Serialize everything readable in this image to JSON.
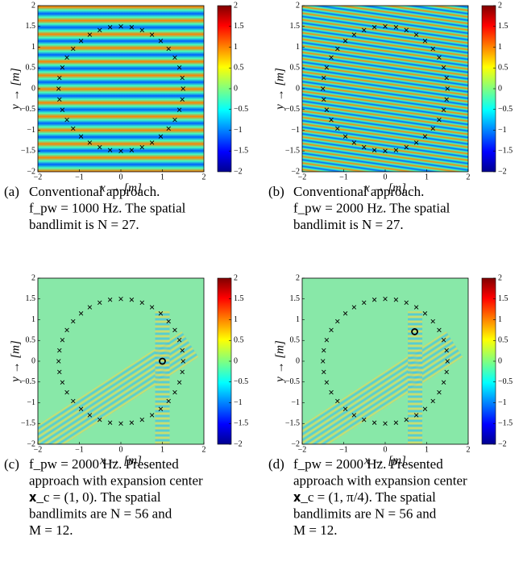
{
  "chart_data": [
    {
      "type": "heatmap",
      "label": "(a)",
      "caption": [
        "Conventional approach.",
        "f_pw = 1000 Hz. The spatial",
        "bandlimit is N = 27."
      ],
      "xlabel": "x → [m]",
      "ylabel": "y → [m]",
      "xlim": [
        -2,
        2
      ],
      "ylim": [
        -2,
        2
      ],
      "xticks": [
        {
          "value": -2,
          "label": "−2"
        },
        {
          "value": -1,
          "label": "−1"
        },
        0,
        1,
        2
      ],
      "yticks": [
        {
          "value": -2,
          "label": "−2"
        },
        {
          "value": -1.5,
          "label": "−1.5"
        },
        {
          "value": -1,
          "label": "−1"
        },
        {
          "value": -0.5,
          "label": "−0.5"
        },
        0,
        0.5,
        1,
        1.5,
        2
      ],
      "colorbar": {
        "lim": [
          -2,
          2
        ],
        "ticks": [
          {
            "value": -2,
            "label": "−2"
          },
          {
            "value": -1.5,
            "label": "−1.5"
          },
          {
            "value": -1,
            "label": "−1"
          },
          {
            "value": -0.5,
            "label": "−0.5"
          },
          0,
          0.5,
          1,
          1.5,
          2
        ]
      }
    },
    {
      "type": "heatmap",
      "label": "(b)",
      "caption": [
        "Conventional approach.",
        "f_pw = 2000 Hz. The spatial",
        "bandlimit is N = 27."
      ],
      "xlabel": "x → [m]",
      "ylabel": "y → [m]",
      "xlim": [
        -2,
        2
      ],
      "ylim": [
        -2,
        2
      ],
      "xticks": [
        {
          "value": -2,
          "label": "−2"
        },
        {
          "value": -1,
          "label": "−1"
        },
        0,
        1,
        2
      ],
      "yticks": [
        {
          "value": -2,
          "label": "−2"
        },
        {
          "value": -1.5,
          "label": "−1.5"
        },
        {
          "value": -1,
          "label": "−1"
        },
        {
          "value": -0.5,
          "label": "−0.5"
        },
        0,
        0.5,
        1,
        1.5,
        2
      ],
      "colorbar": {
        "lim": [
          -2,
          2
        ],
        "ticks": [
          {
            "value": -2,
            "label": "−2"
          },
          {
            "value": -1.5,
            "label": "−1.5"
          },
          {
            "value": -1,
            "label": "−1"
          },
          {
            "value": -0.5,
            "label": "−0.5"
          },
          0,
          0.5,
          1,
          1.5,
          2
        ]
      }
    },
    {
      "type": "heatmap",
      "label": "(c)",
      "caption": [
        "f_pw = 2000 Hz. Presented",
        "approach with expansion center",
        "𝐱_c = (1, 0). The spatial",
        "bandlimits are N = 56 and",
        "M = 12."
      ],
      "xlabel": "x → [m]",
      "ylabel": "y → [m]",
      "xlim": [
        -2,
        2
      ],
      "ylim": [
        -2,
        2
      ],
      "xticks": [
        {
          "value": -2,
          "label": "−2"
        },
        {
          "value": -1,
          "label": "−1"
        },
        0,
        1,
        2
      ],
      "yticks": [
        {
          "value": -2,
          "label": "−2"
        },
        {
          "value": -1.5,
          "label": "−1.5"
        },
        {
          "value": -1,
          "label": "−1"
        },
        {
          "value": -0.5,
          "label": "−0.5"
        },
        0,
        0.5,
        1,
        1.5,
        2
      ],
      "colorbar": {
        "lim": [
          -2,
          2
        ],
        "ticks": [
          {
            "value": -2,
            "label": "−2"
          },
          {
            "value": -1.5,
            "label": "−1.5"
          },
          {
            "value": -1,
            "label": "−1"
          },
          {
            "value": -0.5,
            "label": "−0.5"
          },
          0,
          0.5,
          1,
          1.5,
          2
        ]
      },
      "expansion_center": [
        1,
        0
      ]
    },
    {
      "type": "heatmap",
      "label": "(d)",
      "caption": [
        "f_pw = 2000 Hz. Presented",
        "approach with expansion center",
        "𝐱_c = (1, π/4). The spatial",
        "bandlimits are N = 56 and",
        "M = 12."
      ],
      "xlabel": "x → [m]",
      "ylabel": "y → [m]",
      "xlim": [
        -2,
        2
      ],
      "ylim": [
        -2,
        2
      ],
      "xticks": [
        {
          "value": -2,
          "label": "−2"
        },
        {
          "value": -1,
          "label": "−1"
        },
        0,
        1,
        2
      ],
      "yticks": [
        {
          "value": -2,
          "label": "−2"
        },
        {
          "value": -1.5,
          "label": "−1.5"
        },
        {
          "value": -1,
          "label": "−1"
        },
        {
          "value": -0.5,
          "label": "−0.5"
        },
        0,
        0.5,
        1,
        1.5,
        2
      ],
      "colorbar": {
        "lim": [
          -2,
          2
        ],
        "ticks": [
          {
            "value": -2,
            "label": "−2"
          },
          {
            "value": -1.5,
            "label": "−1.5"
          },
          {
            "value": -1,
            "label": "−1"
          },
          {
            "value": -0.5,
            "label": "−0.5"
          },
          0,
          0.5,
          1,
          1.5,
          2
        ]
      },
      "expansion_center": [
        0.71,
        0.71
      ]
    }
  ],
  "secondary_sources": {
    "x": [
      1.5,
      1.48,
      1.41,
      1.3,
      1.15,
      0.96,
      0.75,
      0.51,
      0.26,
      0,
      -0.26,
      -0.51,
      -0.75,
      -0.96,
      -1.15,
      -1.3,
      -1.41,
      -1.48,
      -1.5,
      -1.48,
      -1.41,
      -1.3,
      -1.15,
      -0.96,
      -0.75,
      -0.51,
      -0.26,
      0,
      0.26,
      0.51,
      0.75,
      0.96,
      1.15,
      1.3,
      1.41,
      1.48
    ],
    "y": [
      0,
      0.26,
      0.51,
      0.75,
      0.96,
      1.15,
      1.3,
      1.41,
      1.48,
      1.5,
      1.48,
      1.41,
      1.3,
      1.15,
      0.96,
      0.75,
      0.51,
      0.26,
      0,
      -0.26,
      -0.51,
      -0.75,
      -0.96,
      -1.15,
      -1.3,
      -1.41,
      -1.48,
      -1.5,
      -1.48,
      -1.41,
      -1.3,
      -1.15,
      -0.96,
      -0.75,
      -0.51,
      -0.26
    ]
  }
}
